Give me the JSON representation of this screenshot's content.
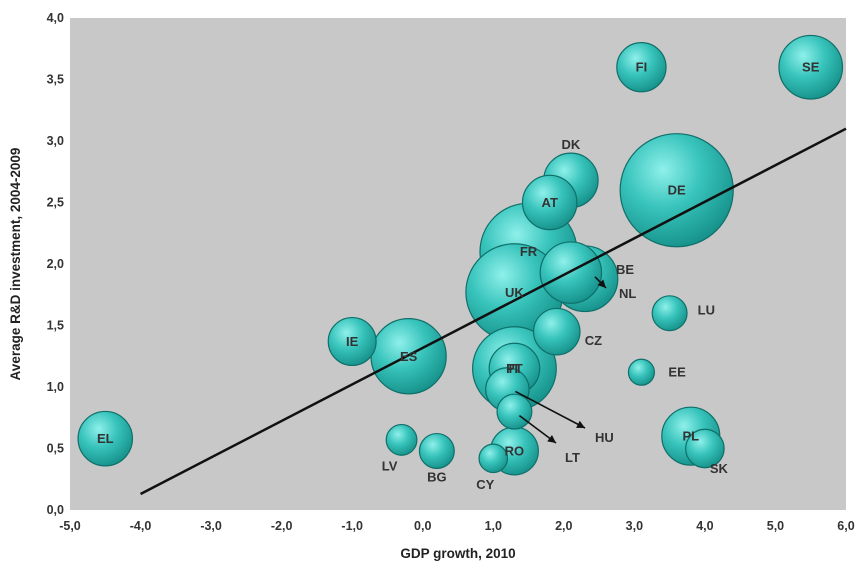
{
  "chart_data": {
    "type": "scatter",
    "title": "",
    "xlabel": "GDP growth, 2010",
    "ylabel": "Average R&D investment, 2004-2009",
    "xlim": [
      -5.0,
      6.0
    ],
    "ylim": [
      0.0,
      4.0
    ],
    "x_ticks": [
      "-5,0",
      "-4,0",
      "-3,0",
      "-2,0",
      "-1,0",
      "0,0",
      "1,0",
      "2,0",
      "3,0",
      "4,0",
      "5,0",
      "6,0"
    ],
    "y_ticks": [
      "0,0",
      "0,5",
      "1,0",
      "1,5",
      "2,0",
      "2,5",
      "3,0",
      "3,5",
      "4,0"
    ],
    "grid": false,
    "legend": "none",
    "colors": {
      "plot_background": "#c8c8c8",
      "bubble_fill": "#2fb8b0",
      "bubble_edge": "#0f6f69",
      "trendline": "#111111"
    },
    "trendline": {
      "x": [
        -4.0,
        6.0
      ],
      "y": [
        0.13,
        3.1
      ]
    },
    "points": [
      {
        "label": "SE",
        "x": 5.5,
        "y": 3.6,
        "size": 30
      },
      {
        "label": "FI",
        "x": 3.1,
        "y": 3.6,
        "size": 18
      },
      {
        "label": "DE",
        "x": 3.6,
        "y": 2.6,
        "size": 95
      },
      {
        "label": "DK",
        "x": 2.1,
        "y": 2.68,
        "size": 22
      },
      {
        "label": "AT",
        "x": 1.8,
        "y": 2.5,
        "size": 22
      },
      {
        "label": "FR",
        "x": 1.5,
        "y": 2.1,
        "size": 70
      },
      {
        "label": "BE",
        "x": 2.1,
        "y": 1.93,
        "size": 28
      },
      {
        "label": "NL",
        "x": 2.3,
        "y": 1.88,
        "size": 32
      },
      {
        "label": "UK",
        "x": 1.3,
        "y": 1.77,
        "size": 70
      },
      {
        "label": "LU",
        "x": 3.5,
        "y": 1.6,
        "size": 9
      },
      {
        "label": "CZ",
        "x": 1.9,
        "y": 1.45,
        "size": 16
      },
      {
        "label": "IE",
        "x": -1.0,
        "y": 1.37,
        "size": 17
      },
      {
        "label": "ES",
        "x": -0.2,
        "y": 1.25,
        "size": 42
      },
      {
        "label": "IT",
        "x": 1.3,
        "y": 1.15,
        "size": 52
      },
      {
        "label": "PT",
        "x": 1.3,
        "y": 1.15,
        "size": 19
      },
      {
        "label": "EE",
        "x": 3.1,
        "y": 1.12,
        "size": 5
      },
      {
        "label": "HU",
        "x": 1.2,
        "y": 0.98,
        "size": 14
      },
      {
        "label": "LT",
        "x": 1.3,
        "y": 0.8,
        "size": 9
      },
      {
        "label": "EL",
        "x": -4.5,
        "y": 0.58,
        "size": 22
      },
      {
        "label": "PL",
        "x": 3.8,
        "y": 0.6,
        "size": 25
      },
      {
        "label": "SK",
        "x": 4.0,
        "y": 0.5,
        "size": 11
      },
      {
        "label": "LV",
        "x": -0.3,
        "y": 0.57,
        "size": 7
      },
      {
        "label": "BG",
        "x": 0.2,
        "y": 0.48,
        "size": 9
      },
      {
        "label": "CY",
        "x": 1.0,
        "y": 0.42,
        "size": 6
      },
      {
        "label": "RO",
        "x": 1.3,
        "y": 0.48,
        "size": 17
      }
    ]
  }
}
